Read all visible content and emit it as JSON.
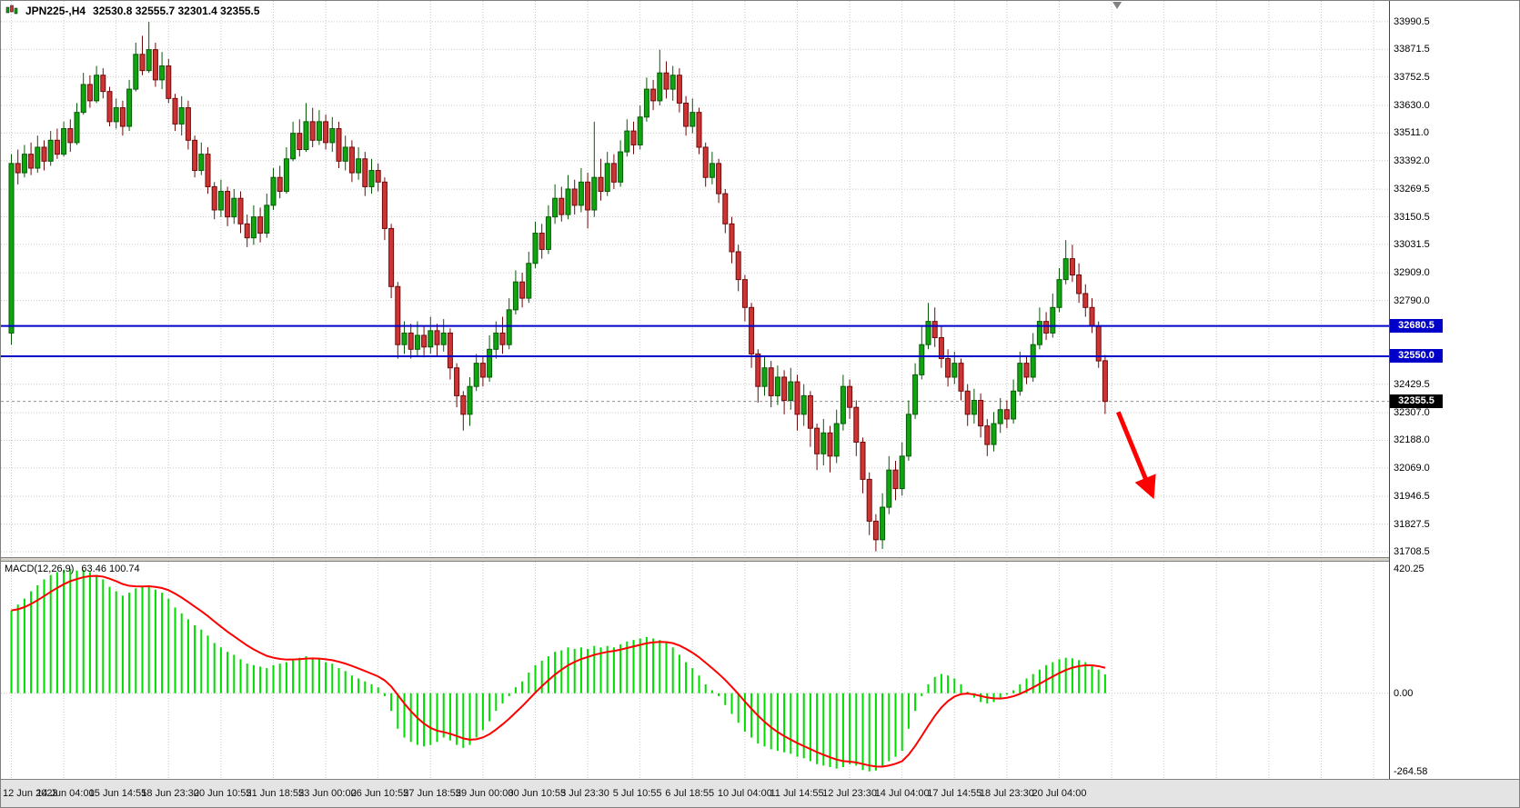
{
  "header": {
    "symbol_period": "JPN225-,H4",
    "ohlc": "32530.8 32555.7 32301.4 32355.5"
  },
  "colors": {
    "background": "#FFFFFF",
    "grid": "#C9C9C9",
    "bull": "#0FA50F",
    "bull_border": "#075907",
    "bear": "#CF3434",
    "bear_border": "#6E0A0A",
    "macd_bar": "#00DB00",
    "macd_signal": "#FF0000",
    "hline": "#0000C8",
    "bid_line": "#909090",
    "arrow": "#FF0000",
    "axis_text": "#000000"
  },
  "chart_data": {
    "type": "candlestick",
    "title": "JPN225-,H4",
    "symbol": "JPN225-",
    "timeframe": "H4",
    "current_ohlc": {
      "open": 32530.8,
      "high": 32555.7,
      "low": 32301.4,
      "close": 32355.5
    },
    "price_range": [
      31685,
      34080
    ],
    "price_ticks": [
      "33990.5",
      "33871.5",
      "33752.5",
      "33630.0",
      "33511.0",
      "33392.0",
      "33269.5",
      "33150.5",
      "33031.5",
      "32909.0",
      "32790.0",
      "32429.5",
      "32307.0",
      "32188.0",
      "32069.0",
      "31946.5",
      "31827.5",
      "31708.5"
    ],
    "time_labels": [
      "12 Jun 2023",
      "14 Jun 04:00",
      "15 Jun 14:55",
      "18 Jun 23:30",
      "20 Jun 10:55",
      "21 Jun 18:55",
      "23 Jun 00:00",
      "26 Jun 10:55",
      "27 Jun 18:55",
      "29 Jun 00:00",
      "30 Jun 10:55",
      "3 Jul 23:30",
      "5 Jul 10:55",
      "6 Jul 18:55",
      "10 Jul 04:00",
      "11 Jul 14:55",
      "12 Jul 23:30",
      "14 Jul 04:00",
      "17 Jul 14:55",
      "18 Jul 23:30",
      "20 Jul 04:00"
    ],
    "candles_per_label": 8,
    "hlines": [
      {
        "price": 32680.5,
        "label": "32680.5"
      },
      {
        "price": 32550.0,
        "label": "32550.0"
      }
    ],
    "bid": {
      "price": 32355.5,
      "label": "32355.5"
    },
    "arrow": {
      "from_candle": 169,
      "from_price": 32310,
      "to_candle": 173.8,
      "to_price": 31980
    },
    "candles": [
      [
        32650,
        33420,
        32600,
        33380
      ],
      [
        33380,
        33440,
        33290,
        33340
      ],
      [
        33340,
        33460,
        33320,
        33420
      ],
      [
        33420,
        33470,
        33330,
        33360
      ],
      [
        33360,
        33500,
        33340,
        33450
      ],
      [
        33450,
        33480,
        33350,
        33390
      ],
      [
        33390,
        33520,
        33370,
        33480
      ],
      [
        33480,
        33530,
        33400,
        33420
      ],
      [
        33420,
        33560,
        33410,
        33530
      ],
      [
        33530,
        33570,
        33430,
        33470
      ],
      [
        33470,
        33640,
        33460,
        33600
      ],
      [
        33600,
        33770,
        33590,
        33720
      ],
      [
        33720,
        33760,
        33620,
        33650
      ],
      [
        33650,
        33800,
        33640,
        33760
      ],
      [
        33760,
        33790,
        33660,
        33690
      ],
      [
        33690,
        33710,
        33540,
        33560
      ],
      [
        33560,
        33660,
        33530,
        33620
      ],
      [
        33620,
        33650,
        33500,
        33540
      ],
      [
        33540,
        33740,
        33520,
        33700
      ],
      [
        33700,
        33900,
        33690,
        33850
      ],
      [
        33850,
        33930,
        33760,
        33780
      ],
      [
        33780,
        33990,
        33770,
        33870
      ],
      [
        33870,
        33900,
        33710,
        33740
      ],
      [
        33740,
        33860,
        33700,
        33800
      ],
      [
        33800,
        33830,
        33640,
        33660
      ],
      [
        33660,
        33680,
        33520,
        33550
      ],
      [
        33550,
        33670,
        33500,
        33620
      ],
      [
        33620,
        33650,
        33440,
        33480
      ],
      [
        33480,
        33500,
        33320,
        33350
      ],
      [
        33350,
        33470,
        33330,
        33420
      ],
      [
        33420,
        33450,
        33250,
        33280
      ],
      [
        33280,
        33300,
        33140,
        33180
      ],
      [
        33180,
        33310,
        33150,
        33260
      ],
      [
        33260,
        33280,
        33110,
        33150
      ],
      [
        33150,
        33270,
        33120,
        33230
      ],
      [
        33230,
        33260,
        33080,
        33120
      ],
      [
        33120,
        33160,
        33020,
        33060
      ],
      [
        33060,
        33200,
        33030,
        33150
      ],
      [
        33150,
        33190,
        33040,
        33080
      ],
      [
        33080,
        33250,
        33060,
        33200
      ],
      [
        33200,
        33360,
        33180,
        33320
      ],
      [
        33320,
        33370,
        33230,
        33260
      ],
      [
        33260,
        33450,
        33250,
        33400
      ],
      [
        33400,
        33560,
        33390,
        33510
      ],
      [
        33510,
        33570,
        33410,
        33440
      ],
      [
        33440,
        33640,
        33430,
        33560
      ],
      [
        33560,
        33620,
        33450,
        33480
      ],
      [
        33480,
        33610,
        33460,
        33560
      ],
      [
        33560,
        33590,
        33440,
        33470
      ],
      [
        33470,
        33580,
        33430,
        33530
      ],
      [
        33530,
        33560,
        33360,
        33390
      ],
      [
        33390,
        33500,
        33350,
        33450
      ],
      [
        33450,
        33480,
        33300,
        33340
      ],
      [
        33340,
        33450,
        33310,
        33400
      ],
      [
        33400,
        33430,
        33240,
        33280
      ],
      [
        33280,
        33400,
        33250,
        33350
      ],
      [
        33350,
        33380,
        33260,
        33300
      ],
      [
        33300,
        33320,
        33050,
        33100
      ],
      [
        33100,
        33120,
        32800,
        32850
      ],
      [
        32850,
        32870,
        32540,
        32600
      ],
      [
        32600,
        32700,
        32560,
        32650
      ],
      [
        32650,
        32690,
        32540,
        32580
      ],
      [
        32580,
        32700,
        32550,
        32640
      ],
      [
        32640,
        32680,
        32545,
        32590
      ],
      [
        32590,
        32720,
        32560,
        32660
      ],
      [
        32660,
        32690,
        32550,
        32600
      ],
      [
        32600,
        32710,
        32570,
        32650
      ],
      [
        32650,
        32670,
        32450,
        32500
      ],
      [
        32500,
        32520,
        32330,
        32380
      ],
      [
        32380,
        32400,
        32230,
        32300
      ],
      [
        32300,
        32460,
        32250,
        32420
      ],
      [
        32420,
        32560,
        32400,
        32520
      ],
      [
        32520,
        32550,
        32420,
        32460
      ],
      [
        32460,
        32640,
        32440,
        32580
      ],
      [
        32580,
        32700,
        32540,
        32650
      ],
      [
        32650,
        32720,
        32560,
        32600
      ],
      [
        32600,
        32800,
        32580,
        32750
      ],
      [
        32750,
        32920,
        32730,
        32870
      ],
      [
        32870,
        32910,
        32760,
        32800
      ],
      [
        32800,
        33000,
        32780,
        32950
      ],
      [
        32950,
        33130,
        32930,
        33080
      ],
      [
        33080,
        33120,
        32970,
        33010
      ],
      [
        33010,
        33200,
        32990,
        33150
      ],
      [
        33150,
        33290,
        33120,
        33230
      ],
      [
        33230,
        33280,
        33130,
        33160
      ],
      [
        33160,
        33330,
        33140,
        33270
      ],
      [
        33270,
        33310,
        33160,
        33200
      ],
      [
        33200,
        33360,
        33170,
        33300
      ],
      [
        33300,
        33340,
        33100,
        33180
      ],
      [
        33180,
        33560,
        33150,
        33320
      ],
      [
        33320,
        33400,
        33220,
        33260
      ],
      [
        33260,
        33430,
        33240,
        33380
      ],
      [
        33380,
        33420,
        33270,
        33300
      ],
      [
        33300,
        33480,
        33280,
        33430
      ],
      [
        33430,
        33570,
        33410,
        33520
      ],
      [
        33520,
        33560,
        33420,
        33460
      ],
      [
        33460,
        33630,
        33440,
        33580
      ],
      [
        33580,
        33750,
        33560,
        33700
      ],
      [
        33700,
        33740,
        33610,
        33650
      ],
      [
        33650,
        33870,
        33630,
        33770
      ],
      [
        33770,
        33820,
        33660,
        33700
      ],
      [
        33700,
        33800,
        33650,
        33760
      ],
      [
        33760,
        33790,
        33600,
        33640
      ],
      [
        33640,
        33670,
        33500,
        33540
      ],
      [
        33540,
        33660,
        33510,
        33600
      ],
      [
        33600,
        33620,
        33420,
        33450
      ],
      [
        33450,
        33470,
        33280,
        33320
      ],
      [
        33320,
        33430,
        33290,
        33380
      ],
      [
        33380,
        33400,
        33210,
        33250
      ],
      [
        33250,
        33270,
        33080,
        33120
      ],
      [
        33120,
        33150,
        32950,
        33000
      ],
      [
        33000,
        33030,
        32830,
        32880
      ],
      [
        32880,
        32900,
        32700,
        32760
      ],
      [
        32760,
        32780,
        32500,
        32560
      ],
      [
        32560,
        32580,
        32350,
        32420
      ],
      [
        32420,
        32550,
        32380,
        32500
      ],
      [
        32500,
        32530,
        32330,
        32380
      ],
      [
        32380,
        32510,
        32340,
        32460
      ],
      [
        32460,
        32490,
        32300,
        32360
      ],
      [
        32360,
        32500,
        32320,
        32440
      ],
      [
        32440,
        32470,
        32230,
        32300
      ],
      [
        32300,
        32430,
        32250,
        32380
      ],
      [
        32380,
        32400,
        32160,
        32240
      ],
      [
        32240,
        32260,
        32060,
        32130
      ],
      [
        32130,
        32280,
        32080,
        32220
      ],
      [
        32220,
        32250,
        32050,
        32120
      ],
      [
        32120,
        32320,
        32090,
        32260
      ],
      [
        32260,
        32470,
        32230,
        32420
      ],
      [
        32420,
        32450,
        32280,
        32330
      ],
      [
        32330,
        32360,
        32120,
        32180
      ],
      [
        32180,
        32200,
        31960,
        32020
      ],
      [
        32020,
        32050,
        31780,
        31840
      ],
      [
        31840,
        31870,
        31710,
        31760
      ],
      [
        31760,
        31960,
        31720,
        31900
      ],
      [
        31900,
        32120,
        31870,
        32060
      ],
      [
        32060,
        32100,
        31930,
        31980
      ],
      [
        31980,
        32180,
        31950,
        32120
      ],
      [
        32120,
        32360,
        32100,
        32300
      ],
      [
        32300,
        32520,
        32280,
        32470
      ],
      [
        32470,
        32680,
        32450,
        32600
      ],
      [
        32600,
        32780,
        32580,
        32700
      ],
      [
        32700,
        32760,
        32590,
        32630
      ],
      [
        32630,
        32680,
        32500,
        32540
      ],
      [
        32540,
        32580,
        32420,
        32460
      ],
      [
        32460,
        32570,
        32430,
        32520
      ],
      [
        32520,
        32540,
        32360,
        32400
      ],
      [
        32400,
        32430,
        32250,
        32300
      ],
      [
        32300,
        32410,
        32260,
        32360
      ],
      [
        32360,
        32390,
        32200,
        32250
      ],
      [
        32250,
        32280,
        32120,
        32170
      ],
      [
        32170,
        32310,
        32140,
        32260
      ],
      [
        32260,
        32370,
        32220,
        32320
      ],
      [
        32320,
        32360,
        32240,
        32280
      ],
      [
        32280,
        32450,
        32260,
        32400
      ],
      [
        32400,
        32570,
        32380,
        32520
      ],
      [
        32520,
        32550,
        32430,
        32460
      ],
      [
        32460,
        32650,
        32440,
        32600
      ],
      [
        32600,
        32760,
        32580,
        32700
      ],
      [
        32700,
        32740,
        32620,
        32650
      ],
      [
        32650,
        32820,
        32630,
        32760
      ],
      [
        32760,
        32930,
        32740,
        32880
      ],
      [
        32880,
        33050,
        32860,
        32970
      ],
      [
        32970,
        33030,
        32870,
        32900
      ],
      [
        32900,
        32950,
        32780,
        32820
      ],
      [
        32820,
        32860,
        32720,
        32760
      ],
      [
        32760,
        32800,
        32650,
        32680
      ],
      [
        32680,
        32700,
        32500,
        32530
      ],
      [
        32530.8,
        32555.7,
        32301.4,
        32355.5
      ]
    ],
    "indicator": {
      "type": "macd",
      "label": "MACD(12,26,9)",
      "values_label": "63.46 100.74",
      "main": 63.46,
      "signal": 100.74,
      "range": [
        -290,
        445
      ],
      "signal_period": 9,
      "axis_ticks": [
        {
          "label": "420.25",
          "value": 420.25
        },
        {
          "label": "0.00",
          "value": 0
        },
        {
          "label": "-264.58",
          "value": -264.58
        }
      ],
      "histogram": [
        280,
        300,
        320,
        345,
        365,
        385,
        400,
        410,
        418,
        420.25,
        415,
        418,
        410,
        400,
        385,
        360,
        345,
        330,
        340,
        355,
        360,
        365,
        350,
        340,
        320,
        290,
        270,
        250,
        230,
        215,
        195,
        170,
        155,
        140,
        130,
        115,
        100,
        95,
        90,
        85,
        95,
        100,
        105,
        115,
        120,
        125,
        120,
        115,
        105,
        100,
        85,
        75,
        60,
        50,
        40,
        30,
        20,
        -10,
        -60,
        -120,
        -150,
        -165,
        -175,
        -180,
        -175,
        -165,
        -150,
        -160,
        -175,
        -185,
        -175,
        -150,
        -125,
        -95,
        -60,
        -35,
        -10,
        20,
        40,
        70,
        95,
        110,
        125,
        140,
        145,
        155,
        150,
        155,
        150,
        160,
        155,
        160,
        155,
        165,
        175,
        180,
        185,
        190,
        185,
        180,
        170,
        155,
        130,
        105,
        85,
        60,
        30,
        10,
        -10,
        -40,
        -70,
        -100,
        -130,
        -150,
        -170,
        -180,
        -190,
        -195,
        -200,
        -205,
        -215,
        -220,
        -230,
        -240,
        -245,
        -250,
        -255,
        -250,
        -240,
        -245,
        -260,
        -264.58,
        -262,
        -250,
        -230,
        -215,
        -195,
        -120,
        -60,
        -10,
        30,
        55,
        65,
        60,
        50,
        30,
        5,
        -15,
        -30,
        -35,
        -30,
        -20,
        -5,
        10,
        30,
        50,
        65,
        80,
        95,
        105,
        115,
        120,
        118,
        112,
        105,
        95,
        80,
        63.46
      ]
    }
  }
}
